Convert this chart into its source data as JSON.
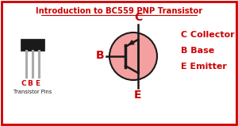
{
  "title": "Introduction to BC559 PNP Transistor",
  "title_color": "#cc0000",
  "bg_color": "#ffffff",
  "border_color": "#cc0000",
  "transistor_circle_color": "#f4a0a0",
  "transistor_circle_edge": "#1a1a1a",
  "label_C": "C",
  "label_B": "B",
  "label_E": "E",
  "label_color": "#cc0000",
  "pins_label": "Transistor Pins",
  "pins_label_color": "#1a1a1a",
  "legend_C": "C Collector",
  "legend_B": "B Base",
  "legend_E": "E Emitter",
  "legend_color": "#cc0000",
  "line_color": "#1a1a1a",
  "body_color": "#1a1a1a",
  "lead_color": "#aaaaaa"
}
